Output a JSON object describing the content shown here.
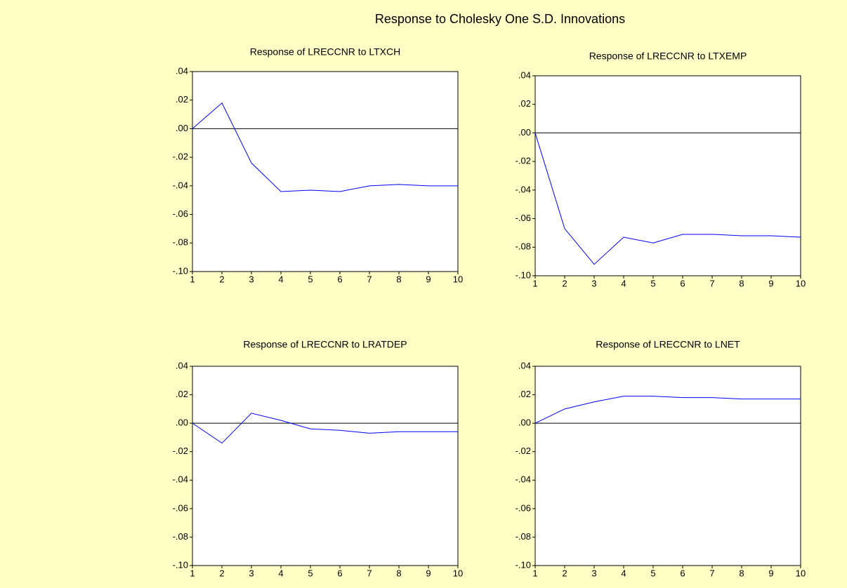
{
  "title": "Response to Cholesky One S.D. Innovations",
  "chart_data": [
    {
      "type": "line",
      "title": "Response of LRECCNR to LTXCH",
      "x": [
        1,
        2,
        3,
        4,
        5,
        6,
        7,
        8,
        9,
        10
      ],
      "values": [
        0.0,
        0.018,
        -0.024,
        -0.044,
        -0.043,
        -0.044,
        -0.04,
        -0.039,
        -0.04,
        -0.04
      ],
      "color": "#0000ff",
      "xlim": [
        1,
        10
      ],
      "xticks": [
        1,
        2,
        3,
        4,
        5,
        6,
        7,
        8,
        9,
        10
      ],
      "ylim": [
        -0.1,
        0.04
      ],
      "yticks": [
        {
          "value": -0.1,
          "label": "-.10"
        },
        {
          "value": -0.08,
          "label": "-.08"
        },
        {
          "value": -0.06,
          "label": "-.06"
        },
        {
          "value": -0.04,
          "label": "-.04"
        },
        {
          "value": -0.02,
          "label": "-.02"
        },
        {
          "value": 0.0,
          "label": ".00"
        },
        {
          "value": 0.02,
          "label": ".02"
        },
        {
          "value": 0.04,
          "label": ".04"
        }
      ]
    },
    {
      "type": "line",
      "title": "Response of LRECCNR to LTXEMP",
      "x": [
        1,
        2,
        3,
        4,
        5,
        6,
        7,
        8,
        9,
        10
      ],
      "values": [
        0.0,
        -0.067,
        -0.092,
        -0.073,
        -0.077,
        -0.071,
        -0.071,
        -0.072,
        -0.072,
        -0.073
      ],
      "color": "#0000ff",
      "xlim": [
        1,
        10
      ],
      "xticks": [
        1,
        2,
        3,
        4,
        5,
        6,
        7,
        8,
        9,
        10
      ],
      "ylim": [
        -0.1,
        0.04
      ],
      "yticks": [
        {
          "value": -0.1,
          "label": "-.10"
        },
        {
          "value": -0.08,
          "label": "-.08"
        },
        {
          "value": -0.06,
          "label": "-.06"
        },
        {
          "value": -0.04,
          "label": "-.04"
        },
        {
          "value": -0.02,
          "label": "-.02"
        },
        {
          "value": 0.0,
          "label": ".00"
        },
        {
          "value": 0.02,
          "label": ".02"
        },
        {
          "value": 0.04,
          "label": ".04"
        }
      ]
    },
    {
      "type": "line",
      "title": "Response of LRECCNR to LRATDEP",
      "x": [
        1,
        2,
        3,
        4,
        5,
        6,
        7,
        8,
        9,
        10
      ],
      "values": [
        0.0,
        -0.014,
        0.007,
        0.002,
        -0.004,
        -0.005,
        -0.007,
        -0.006,
        -0.006,
        -0.006
      ],
      "color": "#0000ff",
      "xlim": [
        1,
        10
      ],
      "xticks": [
        1,
        2,
        3,
        4,
        5,
        6,
        7,
        8,
        9,
        10
      ],
      "ylim": [
        -0.1,
        0.04
      ],
      "yticks": [
        {
          "value": -0.1,
          "label": "-.10"
        },
        {
          "value": -0.08,
          "label": "-.08"
        },
        {
          "value": -0.06,
          "label": "-.06"
        },
        {
          "value": -0.04,
          "label": "-.04"
        },
        {
          "value": -0.02,
          "label": "-.02"
        },
        {
          "value": 0.0,
          "label": ".00"
        },
        {
          "value": 0.02,
          "label": ".02"
        },
        {
          "value": 0.04,
          "label": ".04"
        }
      ]
    },
    {
      "type": "line",
      "title": "Response of LRECCNR to LNET",
      "x": [
        1,
        2,
        3,
        4,
        5,
        6,
        7,
        8,
        9,
        10
      ],
      "values": [
        0.0,
        0.01,
        0.015,
        0.019,
        0.019,
        0.018,
        0.018,
        0.017,
        0.017,
        0.017
      ],
      "color": "#0000ff",
      "xlim": [
        1,
        10
      ],
      "xticks": [
        1,
        2,
        3,
        4,
        5,
        6,
        7,
        8,
        9,
        10
      ],
      "ylim": [
        -0.1,
        0.04
      ],
      "yticks": [
        {
          "value": -0.1,
          "label": "-.10"
        },
        {
          "value": -0.08,
          "label": "-.08"
        },
        {
          "value": -0.06,
          "label": "-.06"
        },
        {
          "value": -0.04,
          "label": "-.04"
        },
        {
          "value": -0.02,
          "label": "-.02"
        },
        {
          "value": 0.0,
          "label": ".00"
        },
        {
          "value": 0.02,
          "label": ".02"
        },
        {
          "value": 0.04,
          "label": ".04"
        }
      ]
    }
  ]
}
